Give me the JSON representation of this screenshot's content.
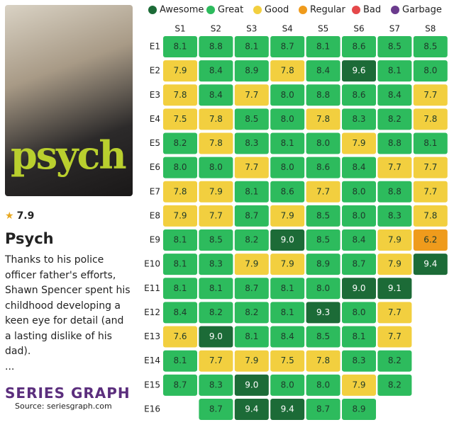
{
  "show": {
    "poster_text": "psych",
    "rating": 7.9,
    "title": "Psych",
    "description": "Thanks to his police officer father's efforts, Shawn Spencer spent his childhood developing a keen eye for detail (and a lasting dislike of his dad).",
    "description_more": "...",
    "brand": "SERIES GRAPH",
    "source": "Source: seriesgraph.com"
  },
  "chart_data": {
    "type": "heatmap",
    "legend": [
      {
        "name": "Awesome",
        "color": "#1c6b37",
        "min": 9
      },
      {
        "name": "Great",
        "color": "#2dbb5d",
        "min": 8
      },
      {
        "name": "Good",
        "color": "#f2cf3f",
        "min": 7
      },
      {
        "name": "Regular",
        "color": "#ef9b1c",
        "min": 6
      },
      {
        "name": "Bad",
        "color": "#e5484a",
        "min": 5
      },
      {
        "name": "Garbage",
        "color": "#6b3b8d",
        "min": 0
      }
    ],
    "x": [
      "S1",
      "S2",
      "S3",
      "S4",
      "S5",
      "S6",
      "S7",
      "S8"
    ],
    "y": [
      "E1",
      "E2",
      "E3",
      "E4",
      "E5",
      "E6",
      "E7",
      "E8",
      "E9",
      "E10",
      "E11",
      "E12",
      "E13",
      "E14",
      "E15",
      "E16"
    ],
    "values": [
      [
        8.1,
        8.8,
        8.1,
        8.7,
        8.1,
        8.6,
        8.5,
        8.5
      ],
      [
        7.9,
        8.4,
        8.9,
        7.8,
        8.4,
        9.6,
        8.1,
        8.0
      ],
      [
        7.8,
        8.4,
        7.7,
        8.0,
        8.8,
        8.6,
        8.4,
        7.7
      ],
      [
        7.5,
        7.8,
        8.5,
        8.0,
        7.8,
        8.3,
        8.2,
        7.8
      ],
      [
        8.2,
        7.8,
        8.3,
        8.1,
        8.0,
        7.9,
        8.8,
        8.1
      ],
      [
        8.0,
        8.0,
        7.7,
        8.0,
        8.6,
        8.4,
        7.7,
        7.7
      ],
      [
        7.8,
        7.9,
        8.1,
        8.6,
        7.7,
        8.0,
        8.8,
        7.7
      ],
      [
        7.9,
        7.7,
        8.7,
        7.9,
        8.5,
        8.0,
        8.3,
        7.8
      ],
      [
        8.1,
        8.5,
        8.2,
        9.0,
        8.5,
        8.4,
        7.9,
        6.2
      ],
      [
        8.1,
        8.3,
        7.9,
        7.9,
        8.9,
        8.7,
        7.9,
        9.4
      ],
      [
        8.1,
        8.1,
        8.7,
        8.1,
        8.0,
        9.0,
        9.1,
        null
      ],
      [
        8.4,
        8.2,
        8.2,
        8.1,
        9.3,
        8.0,
        7.7,
        null
      ],
      [
        7.6,
        9.0,
        8.1,
        8.4,
        8.5,
        8.1,
        7.7,
        null
      ],
      [
        8.1,
        7.7,
        7.9,
        7.5,
        7.8,
        8.3,
        8.2,
        null
      ],
      [
        8.7,
        8.3,
        9.0,
        8.0,
        8.0,
        7.9,
        8.2,
        null
      ],
      [
        null,
        8.7,
        9.4,
        9.4,
        8.7,
        8.9,
        null,
        null
      ]
    ],
    "value_labels": [
      [
        "8.1",
        "8.8",
        "8.1",
        "8.7",
        "8.1",
        "8.6",
        "8.5",
        "8.5"
      ],
      [
        "7.9",
        "8.4",
        "8.9",
        "7.8",
        "8.4",
        "9.6",
        "8.1",
        "8.0"
      ],
      [
        "7.8",
        "8.4",
        "7.7",
        "8.0",
        "8.8",
        "8.6",
        "8.4",
        "7.7"
      ],
      [
        "7.5",
        "7.8",
        "8.5",
        "8.0",
        "7.8",
        "8.3",
        "8.2",
        "7.8"
      ],
      [
        "8.2",
        "7.8",
        "8.3",
        "8.1",
        "8.0",
        "7.9",
        "8.8",
        "8.1"
      ],
      [
        "8.0",
        "8.0",
        "7.7",
        "8.0",
        "8.6",
        "8.4",
        "7.7",
        "7.7"
      ],
      [
        "7.8",
        "7.9",
        "8.1",
        "8.6",
        "7.7",
        "8.0",
        "8.8",
        "7.7"
      ],
      [
        "7.9",
        "7.7",
        "8.7",
        "7.9",
        "8.5",
        "8.0",
        "8.3",
        "7.8"
      ],
      [
        "8.1",
        "8.5",
        "8.2",
        "9.0",
        "8.5",
        "8.4",
        "7.9",
        "6.2"
      ],
      [
        "8.1",
        "8.3",
        "7.9",
        "7.9",
        "8.9",
        "8.7",
        "7.9",
        "9.4"
      ],
      [
        "8.1",
        "8.1",
        "8.7",
        "8.1",
        "8.0",
        "9.0",
        "9.1",
        null
      ],
      [
        "8.4",
        "8.2",
        "8.2",
        "8.1",
        "9.3",
        "8.0",
        "7.7",
        null
      ],
      [
        "7.6",
        "9.0",
        "8.1",
        "8.4",
        "8.5",
        "8.1",
        "7.7",
        null
      ],
      [
        "8.1",
        "7.7",
        "7.9",
        "7.5",
        "7.8",
        "8.3",
        "8.2",
        null
      ],
      [
        "8.7",
        "8.3",
        "9.0",
        "8.0",
        "8.0",
        "7.9",
        "8.2",
        null
      ],
      [
        null,
        "8.7",
        "9.4",
        "9.4",
        "8.7",
        "8.9",
        null,
        null
      ]
    ]
  }
}
